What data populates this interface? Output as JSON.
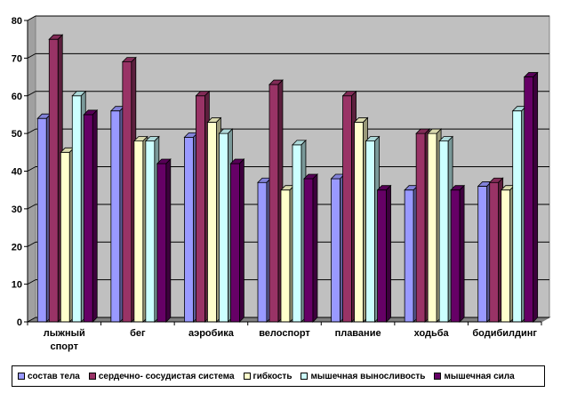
{
  "chart_data": {
    "type": "bar",
    "categories": [
      "лыжный спорт",
      "бег",
      "аэробика",
      "велоспорт",
      "плавание",
      "ходьба",
      "бодибилдинг"
    ],
    "category_lines": [
      [
        "лыжный",
        "спорт"
      ],
      [
        "бег"
      ],
      [
        "аэробика"
      ],
      [
        "велоспорт"
      ],
      [
        "плавание"
      ],
      [
        "ходьба"
      ],
      [
        "бодибилдинг"
      ]
    ],
    "ylim": [
      0,
      80
    ],
    "yticks": [
      0,
      10,
      20,
      30,
      40,
      50,
      60,
      70,
      80
    ],
    "grid": true,
    "plot_background": "#c0c0c0",
    "legend_position": "bottom",
    "series": [
      {
        "name": "состав тела",
        "color": "#9999ff",
        "values": [
          54,
          56,
          49,
          37,
          38,
          35,
          36
        ]
      },
      {
        "name": "сердечно- сосудистая система",
        "color": "#993366",
        "values": [
          75,
          69,
          60,
          63,
          60,
          50,
          37
        ]
      },
      {
        "name": "гибкость",
        "color": "#ffffcc",
        "values": [
          45,
          48,
          53,
          35,
          53,
          50,
          35
        ]
      },
      {
        "name": "мышечная выносливость",
        "color": "#ccffff",
        "values": [
          60,
          48,
          50,
          47,
          48,
          48,
          56
        ]
      },
      {
        "name": "мышечная сила",
        "color": "#660066",
        "values": [
          55,
          42,
          42,
          38,
          35,
          35,
          65
        ]
      }
    ]
  }
}
